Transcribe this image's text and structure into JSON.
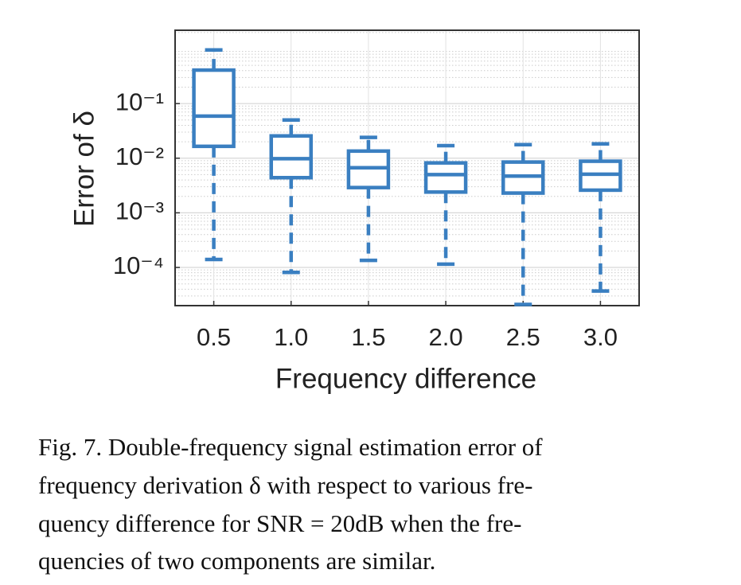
{
  "chart_data": {
    "type": "box",
    "categories": [
      "0.5",
      "1.0",
      "1.5",
      "2.0",
      "2.5",
      "3.0"
    ],
    "boxes": [
      {
        "min": 0.00014,
        "q1": 0.0165,
        "median": 0.059,
        "q3": 0.41,
        "max": 0.96
      },
      {
        "min": 8.1e-05,
        "q1": 0.0044,
        "median": 0.0098,
        "q3": 0.0256,
        "max": 0.05
      },
      {
        "min": 0.000135,
        "q1": 0.0029,
        "median": 0.0067,
        "q3": 0.0135,
        "max": 0.024
      },
      {
        "min": 0.000115,
        "q1": 0.0024,
        "median": 0.005,
        "q3": 0.0082,
        "max": 0.017
      },
      {
        "min": 2.1e-05,
        "q1": 0.0023,
        "median": 0.0047,
        "q3": 0.0085,
        "max": 0.0177
      },
      {
        "min": 3.7e-05,
        "q1": 0.0026,
        "median": 0.0051,
        "q3": 0.0088,
        "max": 0.0183
      }
    ],
    "color": "#3a7fc1",
    "y_label": "Error of δ",
    "x_label": "Frequency difference",
    "ylim": [
      2e-05,
      2.2
    ],
    "log_y": true,
    "yticks": [
      {
        "value": 0.0001,
        "label": "10⁻⁴"
      },
      {
        "value": 0.001,
        "label": "10⁻³"
      },
      {
        "value": 0.01,
        "label": "10⁻²"
      },
      {
        "value": 0.1,
        "label": "10⁻¹"
      }
    ],
    "grid": true
  },
  "caption": [
    "Fig. 7.  Double-frequency signal estimation error of",
    "frequency derivation δ with respect to various fre-",
    "quency difference for SNR  =  20dB when the fre-",
    "quencies of two components are similar."
  ]
}
